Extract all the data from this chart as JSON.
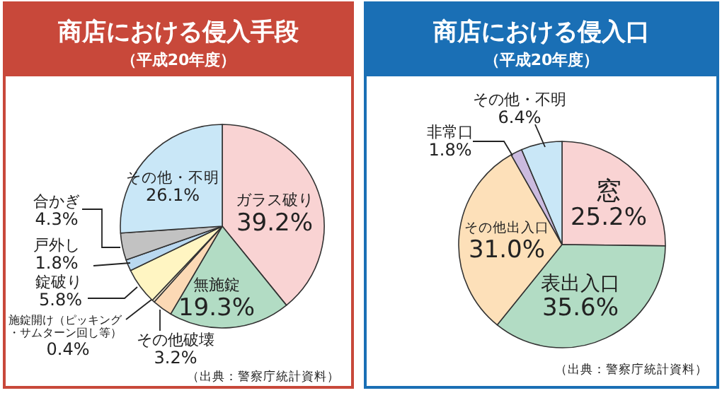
{
  "chart_data": [
    {
      "type": "pie",
      "title": "商店における侵入手段",
      "subtitle": "（平成20年度）",
      "categories": [
        "ガラス破り",
        "無施錠",
        "その他破壊",
        "施錠開け（ピッキング・サムターン回し等）",
        "錠破り",
        "戸外し",
        "合かぎ",
        "その他・不明"
      ],
      "values": [
        39.2,
        19.3,
        3.2,
        0.4,
        5.8,
        1.8,
        4.3,
        26.1
      ],
      "colors": [
        "#f9d3d3",
        "#b2dcc4",
        "#fcd9b5",
        "#efe3c8",
        "#fff5c2",
        "#b9d8f0",
        "#c2c2c2",
        "#c9e7f7"
      ],
      "value_labels": [
        "39.2%",
        "19.3%",
        "3.2%",
        "0.4%",
        "5.8%",
        "1.8%",
        "4.3%",
        "26.1%"
      ],
      "annotations": [
        "（出典：警察庁統計資料）"
      ]
    },
    {
      "type": "pie",
      "title": "商店における侵入口",
      "subtitle": "（平成20年度）",
      "categories": [
        "窓",
        "表出入口",
        "その他出入口",
        "非常口",
        "その他・不明"
      ],
      "values": [
        25.2,
        35.6,
        31.0,
        1.8,
        6.4
      ],
      "colors": [
        "#f9d3d3",
        "#b2dcc4",
        "#fde0b9",
        "#cbbbdf",
        "#c9e7f7"
      ],
      "value_labels": [
        "25.2%",
        "35.6%",
        "31.0%",
        "1.8%",
        "6.4%"
      ],
      "annotations": [
        "（出典：警察庁統計資料）"
      ]
    }
  ]
}
